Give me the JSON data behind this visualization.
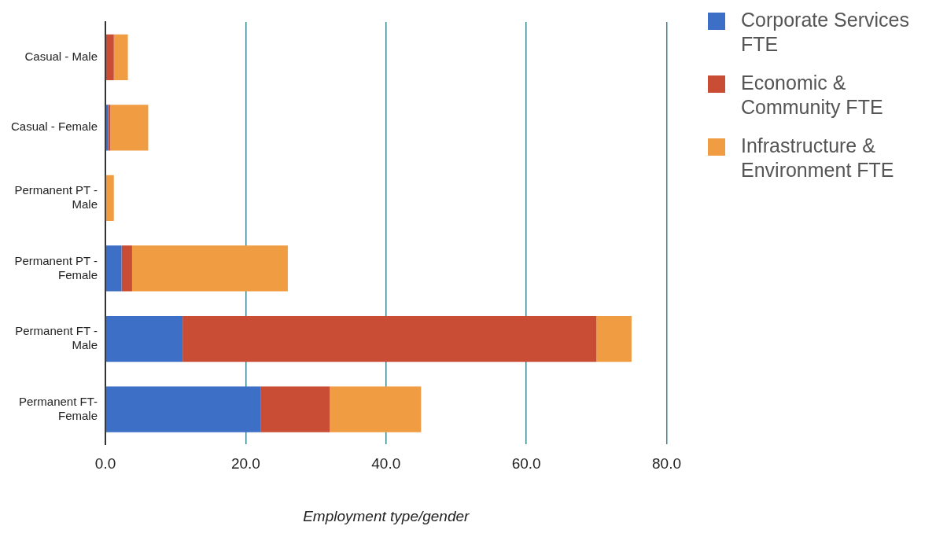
{
  "chart_data": {
    "type": "bar",
    "orientation": "horizontal",
    "stacked": true,
    "categories": [
      "Casual - Male",
      "Casual - Female",
      "Permanent PT - Male",
      "Permanent PT - Female",
      "Permanent FT - Male",
      "Permanent FT- Female"
    ],
    "series": [
      {
        "name": "Corporate Services FTE",
        "color": "#3d6fc6",
        "values": [
          0,
          0.4,
          0,
          2.3,
          11,
          22.1
        ]
      },
      {
        "name": "Economic & Community FTE",
        "color": "#c94c34",
        "values": [
          1.2,
          0.3,
          0,
          1.5,
          59,
          9.9
        ]
      },
      {
        "name": "Infrastructure & Environment FTE",
        "color": "#f09c42",
        "values": [
          2,
          5.4,
          1.2,
          22.2,
          5,
          13
        ]
      }
    ],
    "xlim": [
      0,
      80
    ],
    "xticks": [
      {
        "value": 0,
        "label": "0.0"
      },
      {
        "value": 20,
        "label": "20.0"
      },
      {
        "value": 40,
        "label": "40.0"
      },
      {
        "value": 60,
        "label": "60.0"
      },
      {
        "value": 80,
        "label": "80.0"
      }
    ],
    "xlabel": "Employment type/gender",
    "grid": "x",
    "legend": "top right"
  }
}
